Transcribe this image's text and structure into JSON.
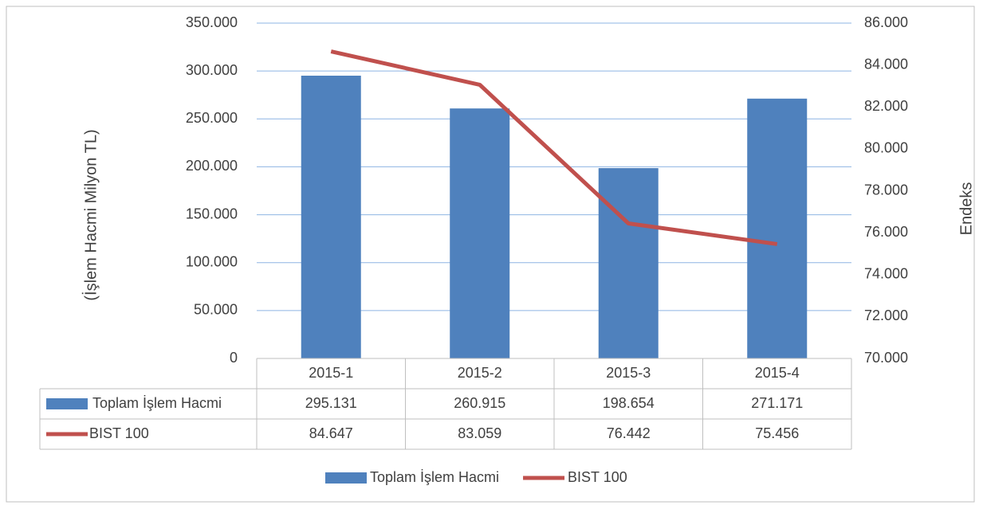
{
  "chart_data": {
    "type": "combo",
    "categories": [
      "2015-1",
      "2015-2",
      "2015-3",
      "2015-4"
    ],
    "series": [
      {
        "name": "Toplam İşlem Hacmi",
        "type": "bar",
        "color": "#4f81bd",
        "values": [
          295131,
          260915,
          198654,
          271171
        ],
        "value_labels": [
          "295.131",
          "260.915",
          "198.654",
          "271.171"
        ]
      },
      {
        "name": "BIST 100",
        "type": "line",
        "axis": "y2",
        "color": "#c0504d",
        "values": [
          84647,
          83059,
          76442,
          75456
        ],
        "value_labels": [
          "84.647",
          "83.059",
          "76.442",
          "75.456"
        ]
      }
    ],
    "ylabel": "(İşlem Hacmi Milyon TL)",
    "y2label": "Endeks",
    "ylim": [
      0,
      350000
    ],
    "yticks": [
      0,
      {
        "value": 50000,
        "label": "50.000"
      },
      {
        "value": 100000,
        "label": "100.000"
      },
      {
        "value": 150000,
        "label": "150.000"
      },
      {
        "value": 200000,
        "label": "200.000"
      },
      {
        "value": 250000,
        "label": "250.000"
      },
      {
        "value": 300000,
        "label": "300.000"
      },
      {
        "value": 350000,
        "label": "350.000"
      }
    ],
    "y2lim": [
      70000,
      86000
    ],
    "y2ticks": [
      {
        "value": 70000,
        "label": "70.000"
      },
      {
        "value": 72000,
        "label": "72.000"
      },
      {
        "value": 74000,
        "label": "74.000"
      },
      {
        "value": 76000,
        "label": "76.000"
      },
      {
        "value": 78000,
        "label": "78.000"
      },
      {
        "value": 80000,
        "label": "80.000"
      },
      {
        "value": 82000,
        "label": "82.000"
      },
      {
        "value": 84000,
        "label": "84.000"
      },
      {
        "value": 86000,
        "label": "86.000"
      }
    ],
    "grid": true,
    "legend": "bottom",
    "data_table": true
  }
}
